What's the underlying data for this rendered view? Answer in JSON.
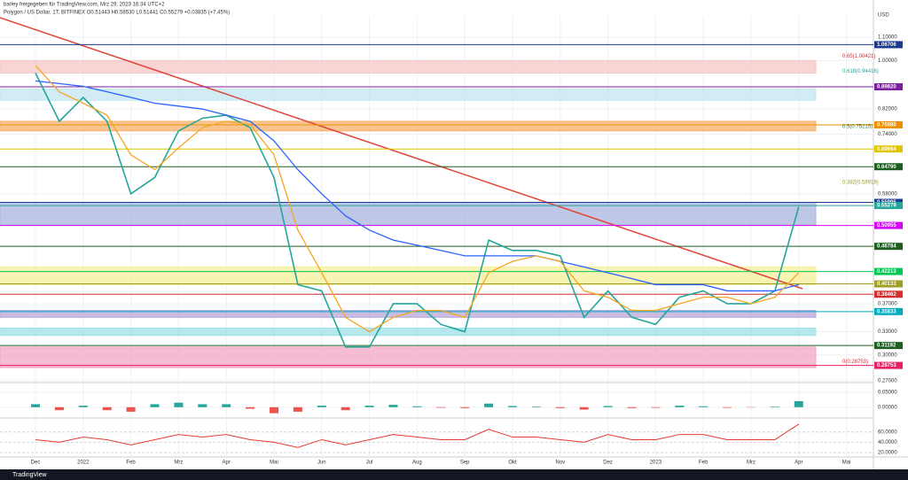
{
  "header": {
    "text": "barley freigegeben für TradingView.com, Mrz 29, 2023 16:34 UTC+2",
    "legend": "Polygon / US Dollar, 1T, BITFINEX O0.51443 H0.58530 L0.51441 C0.55279 +0.03835 (+7.45%)"
  },
  "footer": {
    "brand": "TradingView"
  },
  "chart_data": [
    {
      "type": "line",
      "axis_title": "USD",
      "log_scale": true,
      "categories": [
        "Dec",
        null,
        "2022",
        null,
        "Feb",
        null,
        "Mrz",
        null,
        "Apr",
        null,
        "Mai",
        null,
        "Jun",
        null,
        "Jul",
        null,
        "Aug",
        null,
        "Sep",
        null,
        "Okt",
        null,
        "Nov",
        null,
        "Dez",
        null,
        "2023",
        null,
        "Feb",
        null,
        "Mrz",
        null,
        "Apr",
        null,
        "Mai"
      ],
      "series": [
        {
          "color": "#26a69a",
          "values": [
            0.95,
            0.78,
            0.86,
            0.78,
            0.58,
            0.62,
            0.75,
            0.79,
            0.8,
            0.76,
            0.62,
            0.4,
            0.39,
            0.31,
            0.31,
            0.37,
            0.37,
            0.34,
            0.33,
            0.48,
            0.46,
            0.46,
            0.45,
            0.35,
            0.39,
            0.35,
            0.34,
            0.38,
            0.39,
            0.37,
            0.37,
            0.39,
            0.55,
            null,
            null
          ]
        },
        {
          "color": "#2962ff",
          "values": [
            0.92,
            0.91,
            0.9,
            0.88,
            0.86,
            0.84,
            0.83,
            0.82,
            0.8,
            0.78,
            0.72,
            0.64,
            0.58,
            0.53,
            0.5,
            0.48,
            0.47,
            0.46,
            0.45,
            0.45,
            0.45,
            0.45,
            0.44,
            0.43,
            0.42,
            0.41,
            0.4,
            0.4,
            0.4,
            0.39,
            0.39,
            0.39,
            0.4,
            null,
            null
          ]
        },
        {
          "color": "#f5a623",
          "values": [
            0.98,
            0.88,
            0.84,
            0.8,
            0.68,
            0.64,
            0.7,
            0.76,
            0.78,
            0.77,
            0.68,
            0.5,
            0.42,
            0.35,
            0.33,
            0.35,
            0.36,
            0.36,
            0.35,
            0.42,
            0.44,
            0.45,
            0.44,
            0.39,
            0.38,
            0.36,
            0.36,
            0.37,
            0.38,
            0.38,
            0.37,
            0.38,
            0.42,
            null,
            null
          ]
        }
      ],
      "ylim": [
        0.27,
        1.2
      ],
      "yticks": [
        {
          "value": 1.1,
          "label": "1.10000"
        },
        {
          "value": 1.0,
          "label": "1.00000"
        },
        {
          "value": 0.82,
          "label": "0.82000"
        },
        {
          "value": 0.74,
          "label": "0.74000"
        },
        {
          "value": 0.58,
          "label": "0.58000"
        },
        {
          "value": 0.37,
          "label": "0.37000"
        },
        {
          "value": 0.33,
          "label": "0.33000"
        },
        {
          "value": 0.3,
          "label": "0.30000"
        },
        {
          "value": 0.27,
          "label": "0.27000"
        }
      ],
      "grid": true,
      "zones": [
        {
          "range": [
            0.95,
            1.0
          ],
          "color": "#f7c6c6"
        },
        {
          "range": [
            0.85,
            0.89
          ],
          "color": "#c3e6f2"
        },
        {
          "range": [
            0.75,
            0.78
          ],
          "color": "#f6b26b"
        },
        {
          "range": [
            0.51,
            0.56
          ],
          "color": "#aab4de"
        },
        {
          "range": [
            0.4,
            0.43
          ],
          "color": "#f4ef9a"
        },
        {
          "range": [
            0.35,
            0.36
          ],
          "color": "#b9a5da"
        },
        {
          "range": [
            0.325,
            0.335
          ],
          "color": "#9fe0e8"
        },
        {
          "range": [
            0.285,
            0.31
          ],
          "color": "#f2a6c4"
        }
      ],
      "levels": [
        {
          "value": 1.06706,
          "label": "1.06706",
          "color": "#1a3a8f"
        },
        {
          "value": 0.8982,
          "label": "0.89820",
          "color": "#7b1fa2"
        },
        {
          "value": 0.7688,
          "label": "0.76880",
          "color": "#ef8f00"
        },
        {
          "value": 0.69664,
          "label": "0.69664",
          "color": "#e0c400"
        },
        {
          "value": 0.6479,
          "label": "0.64790",
          "color": "#1b5e20"
        },
        {
          "value": 0.55995,
          "label": "0.55995",
          "color": "#1a3a8f"
        },
        {
          "value": 0.55279,
          "label": "0.55279",
          "color": "#26a69a"
        },
        {
          "value": 0.50955,
          "label": "0.50955",
          "color": "#d500f9"
        },
        {
          "value": 0.46784,
          "label": "0.46784",
          "color": "#1b5e20"
        },
        {
          "value": 0.42213,
          "label": "0.42213",
          "color": "#00c853"
        },
        {
          "value": 0.40133,
          "label": "0.40133",
          "color": "#9e9d24"
        },
        {
          "value": 0.38462,
          "label": "0.38462",
          "color": "#d32f2f"
        },
        {
          "value": 0.35833,
          "label": "0.35833",
          "color": "#00acc1"
        },
        {
          "value": 0.31192,
          "label": "0.31192",
          "color": "#1b5e20"
        },
        {
          "value": 0.28753,
          "label": "0.28753",
          "color": "#e91e63"
        }
      ],
      "annotations": [
        {
          "text": "0.65(1.00421)",
          "value": 1.00421,
          "color": "#d32f2f"
        },
        {
          "text": "0.618(0.94416)",
          "value": 0.94416,
          "color": "#26a69a"
        },
        {
          "text": "0.5(0.75215)",
          "value": 0.75215,
          "color": "#2e7d32"
        },
        {
          "text": "0.382(0.59919)",
          "value": 0.59919,
          "color": "#9e9d24"
        },
        {
          "text": "0(0.28753)",
          "value": 0.28753,
          "color": "#d32f2f"
        }
      ],
      "trendline_color": "#e0453a"
    },
    {
      "type": "histogram",
      "up_color": "#26a69a",
      "down_color": "#ef5350",
      "values": [
        0.01,
        -0.01,
        0.005,
        -0.01,
        -0.015,
        0.01,
        0.015,
        0.01,
        0.01,
        -0.005,
        -0.02,
        -0.015,
        0.005,
        -0.01,
        0.005,
        0.008,
        0.003,
        -0.002,
        -0.003,
        0.012,
        0.004,
        0.002,
        -0.003,
        -0.008,
        0.004,
        -0.003,
        -0.002,
        0.005,
        0.003,
        -0.002,
        -0.001,
        0.002,
        0.02,
        null,
        null
      ],
      "ylim": [
        -0.03,
        0.07
      ],
      "yticks": [
        {
          "value": 0.05,
          "label": "0.05000"
        },
        {
          "value": 0,
          "label": "0.00000"
        }
      ]
    },
    {
      "type": "line",
      "color": "#e53935",
      "values": [
        45,
        40,
        50,
        45,
        35,
        45,
        55,
        50,
        55,
        45,
        40,
        30,
        45,
        35,
        45,
        55,
        50,
        45,
        45,
        65,
        50,
        50,
        45,
        40,
        55,
        45,
        45,
        55,
        55,
        45,
        45,
        45,
        75,
        null,
        null
      ],
      "ylim": [
        15,
        80
      ],
      "yticks": [
        {
          "value": 60,
          "label": "60.0000"
        },
        {
          "value": 40,
          "label": "40.0000"
        },
        {
          "value": 20,
          "label": "20.0000"
        }
      ]
    }
  ]
}
